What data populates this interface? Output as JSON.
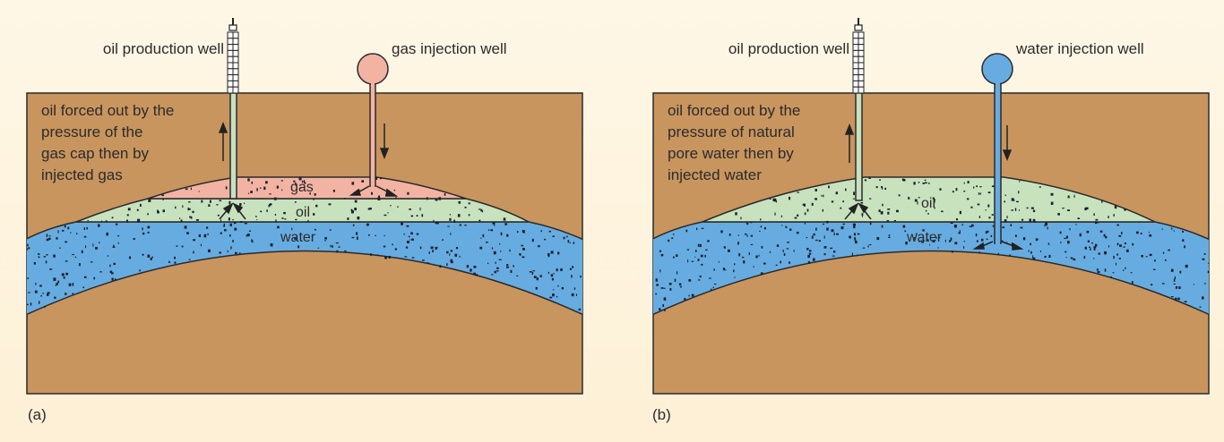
{
  "colors": {
    "rock": "#c8955f",
    "gas": "#f2b3a3",
    "oil": "#c8e2bd",
    "water": "#67ace0",
    "pipe": "#c8e0c0",
    "background": "#fdf3de"
  },
  "panels": [
    {
      "tag": "(a)",
      "production_well": "oil production well",
      "injection_well": "gas injection well",
      "description": [
        "oil forced out by the",
        "pressure of the",
        "gas cap then by",
        "injected gas"
      ],
      "layers": {
        "gas": "gas",
        "oil": "oil",
        "water": "water"
      }
    },
    {
      "tag": "(b)",
      "production_well": "oil production well",
      "injection_well": "water injection well",
      "description": [
        "oil forced out by the",
        "pressure of natural",
        "pore water then by",
        "injected water"
      ],
      "layers": {
        "oil": "oil",
        "water": "water"
      }
    }
  ]
}
